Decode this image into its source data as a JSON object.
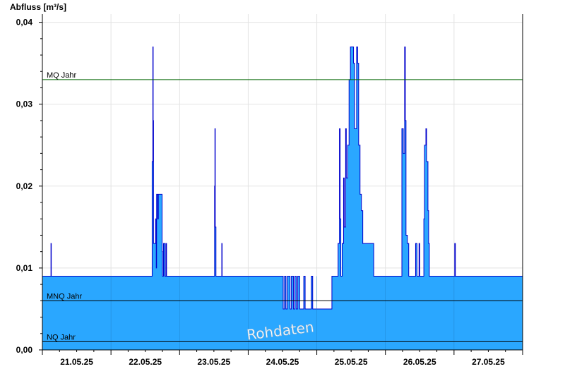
{
  "chart_data": {
    "type": "area",
    "ylabel": "Abfluss [m³/s]",
    "ylim": [
      0,
      0.041
    ],
    "y_ticks": [
      {
        "value": 0.0,
        "label": "0,00"
      },
      {
        "value": 0.01,
        "label": "0,01"
      },
      {
        "value": 0.02,
        "label": "0,02"
      },
      {
        "value": 0.03,
        "label": "0,03"
      },
      {
        "value": 0.04,
        "label": "0,04"
      }
    ],
    "xlim": [
      0,
      7
    ],
    "x_ticks": [
      {
        "value": 0.5,
        "label": "21.05.25"
      },
      {
        "value": 1.5,
        "label": "22.05.25"
      },
      {
        "value": 2.5,
        "label": "23.05.25"
      },
      {
        "value": 3.5,
        "label": "24.05.25"
      },
      {
        "value": 4.5,
        "label": "25.05.25"
      },
      {
        "value": 5.5,
        "label": "26.05.25"
      },
      {
        "value": 6.5,
        "label": "27.05.25"
      }
    ],
    "grid": true,
    "fill_color": "#2aa7ff",
    "line_color": "#0000cc",
    "reference_lines": [
      {
        "label": "MQ Jahr",
        "value": 0.033,
        "color": "#006400"
      },
      {
        "label": "MNQ Jahr",
        "value": 0.006,
        "color": "#000000"
      },
      {
        "label": "NQ Jahr",
        "value": 0.001,
        "color": "#000000"
      }
    ],
    "annotation": "Rohdaten",
    "series": [
      {
        "values": [
          [
            0.0,
            0.009
          ],
          [
            0.12,
            0.009
          ],
          [
            0.125,
            0.013
          ],
          [
            0.13,
            0.009
          ],
          [
            1.5,
            0.009
          ],
          [
            1.59,
            0.009
          ],
          [
            1.6,
            0.023
          ],
          [
            1.61,
            0.037
          ],
          [
            1.615,
            0.028
          ],
          [
            1.62,
            0.013
          ],
          [
            1.64,
            0.013
          ],
          [
            1.65,
            0.016
          ],
          [
            1.66,
            0.01
          ],
          [
            1.665,
            0.019
          ],
          [
            1.68,
            0.016
          ],
          [
            1.69,
            0.019
          ],
          [
            1.74,
            0.019
          ],
          [
            1.745,
            0.012
          ],
          [
            1.75,
            0.009
          ],
          [
            1.76,
            0.009
          ],
          [
            1.765,
            0.013
          ],
          [
            1.78,
            0.013
          ],
          [
            1.785,
            0.009
          ],
          [
            1.8,
            0.013
          ],
          [
            1.81,
            0.009
          ],
          [
            2.5,
            0.009
          ],
          [
            2.51,
            0.02
          ],
          [
            2.515,
            0.027
          ],
          [
            2.52,
            0.015
          ],
          [
            2.53,
            0.009
          ],
          [
            2.61,
            0.009
          ],
          [
            2.615,
            0.013
          ],
          [
            2.62,
            0.009
          ],
          [
            3.5,
            0.009
          ],
          [
            3.51,
            0.005
          ],
          [
            3.53,
            0.009
          ],
          [
            3.55,
            0.005
          ],
          [
            3.57,
            0.009
          ],
          [
            3.6,
            0.009
          ],
          [
            3.61,
            0.005
          ],
          [
            3.63,
            0.009
          ],
          [
            3.66,
            0.005
          ],
          [
            3.68,
            0.009
          ],
          [
            3.7,
            0.005
          ],
          [
            3.72,
            0.009
          ],
          [
            3.75,
            0.005
          ],
          [
            3.8,
            0.005
          ],
          [
            3.81,
            0.009
          ],
          [
            3.83,
            0.005
          ],
          [
            3.9,
            0.005
          ],
          [
            3.92,
            0.009
          ],
          [
            3.94,
            0.005
          ],
          [
            4.2,
            0.005
          ],
          [
            4.22,
            0.009
          ],
          [
            4.3,
            0.009
          ],
          [
            4.31,
            0.013
          ],
          [
            4.33,
            0.027
          ],
          [
            4.34,
            0.016
          ],
          [
            4.35,
            0.009
          ],
          [
            4.37,
            0.013
          ],
          [
            4.39,
            0.021
          ],
          [
            4.4,
            0.015
          ],
          [
            4.42,
            0.027
          ],
          [
            4.43,
            0.021
          ],
          [
            4.45,
            0.025
          ],
          [
            4.47,
            0.033
          ],
          [
            4.49,
            0.037
          ],
          [
            4.52,
            0.037
          ],
          [
            4.535,
            0.035
          ],
          [
            4.55,
            0.027
          ],
          [
            4.57,
            0.027
          ],
          [
            4.58,
            0.037
          ],
          [
            4.595,
            0.035
          ],
          [
            4.61,
            0.025
          ],
          [
            4.63,
            0.019
          ],
          [
            4.65,
            0.017
          ],
          [
            4.67,
            0.013
          ],
          [
            4.8,
            0.013
          ],
          [
            4.83,
            0.009
          ],
          [
            5.22,
            0.009
          ],
          [
            5.24,
            0.027
          ],
          [
            5.26,
            0.024
          ],
          [
            5.28,
            0.037
          ],
          [
            5.29,
            0.028
          ],
          [
            5.3,
            0.014
          ],
          [
            5.32,
            0.013
          ],
          [
            5.34,
            0.009
          ],
          [
            5.43,
            0.009
          ],
          [
            5.44,
            0.013
          ],
          [
            5.46,
            0.009
          ],
          [
            5.49,
            0.013
          ],
          [
            5.5,
            0.009
          ],
          [
            5.55,
            0.009
          ],
          [
            5.56,
            0.016
          ],
          [
            5.57,
            0.025
          ],
          [
            5.59,
            0.027
          ],
          [
            5.6,
            0.023
          ],
          [
            5.62,
            0.017
          ],
          [
            5.63,
            0.013
          ],
          [
            5.64,
            0.009
          ],
          [
            6.0,
            0.009
          ],
          [
            6.01,
            0.013
          ],
          [
            6.02,
            0.009
          ],
          [
            7.0,
            0.009
          ]
        ]
      }
    ]
  }
}
